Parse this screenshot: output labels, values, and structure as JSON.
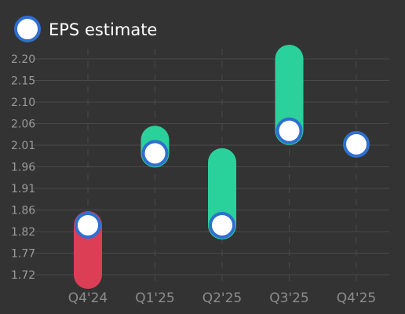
{
  "chart_data": {
    "type": "range-bar",
    "legend": {
      "label": "EPS estimate",
      "position": "top-left"
    },
    "categories": [
      "Q4'24",
      "Q1'25",
      "Q2'25",
      "Q3'25",
      "Q4'25"
    ],
    "estimate": [
      1.83,
      1.99,
      1.83,
      2.04,
      2.01
    ],
    "actual": [
      1.72,
      2.02,
      1.97,
      2.2,
      null
    ],
    "yticks": [
      "2.20",
      "2.15",
      "2.10",
      "2.06",
      "2.01",
      "1.96",
      "1.91",
      "1.86",
      "1.82",
      "1.77",
      "1.72"
    ],
    "ylim": [
      1.72,
      2.2
    ],
    "grid": {
      "horizontal": true,
      "vertical": "dashed"
    },
    "colors": {
      "beat": "#2ad19b",
      "miss": "#dc3e56",
      "marker_fill": "#ffffff",
      "marker_stroke": "#2f6fd1",
      "grid": "#4a4a4a",
      "background": "#333333"
    }
  }
}
